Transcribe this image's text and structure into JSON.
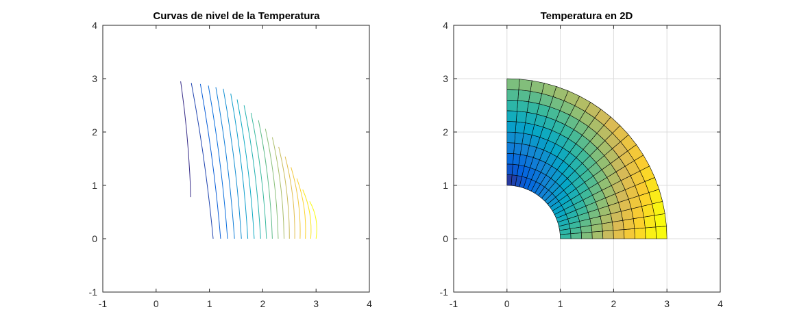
{
  "chart_data": [
    {
      "type": "contour",
      "title": "Curvas de nivel de la Temperatura",
      "xlabel": "",
      "ylabel": "",
      "xlim": [
        -1,
        4
      ],
      "ylim": [
        -1,
        4
      ],
      "xticks": [
        -1,
        0,
        1,
        2,
        3,
        4
      ],
      "yticks": [
        -1,
        0,
        1,
        2,
        3,
        4
      ],
      "grid": false,
      "domain": {
        "r_inner": 1,
        "r_outer": 3,
        "theta_range_deg": [
          0,
          90
        ]
      },
      "level_count": 19,
      "colormap": "parula",
      "colormap_colors": [
        "#352a87",
        "#0363e1",
        "#1485d4",
        "#06a7c6",
        "#38b99e",
        "#92bf73",
        "#d9ba56",
        "#fcce2e",
        "#f9fb0e"
      ],
      "levels": [
        {
          "bottom": [
            0.65,
            0.78
          ],
          "top": [
            0.46,
            2.95
          ]
        },
        {
          "bottom": [
            1.07,
            0.0
          ],
          "top": [
            0.66,
            2.92
          ]
        },
        {
          "bottom": [
            1.21,
            0.0
          ],
          "top": [
            0.83,
            2.9
          ]
        },
        {
          "bottom": [
            1.34,
            0.0
          ],
          "top": [
            0.98,
            2.87
          ]
        },
        {
          "bottom": [
            1.47,
            0.0
          ],
          "top": [
            1.12,
            2.84
          ]
        },
        {
          "bottom": [
            1.6,
            0.0
          ],
          "top": [
            1.26,
            2.81
          ]
        },
        {
          "bottom": [
            1.72,
            0.0
          ],
          "top": [
            1.4,
            2.72
          ]
        },
        {
          "bottom": [
            1.84,
            0.0
          ],
          "top": [
            1.52,
            2.61
          ]
        },
        {
          "bottom": [
            1.96,
            0.0
          ],
          "top": [
            1.65,
            2.5
          ]
        },
        {
          "bottom": [
            2.07,
            0.0
          ],
          "top": [
            1.78,
            2.36
          ]
        },
        {
          "bottom": [
            2.18,
            0.0
          ],
          "top": [
            1.92,
            2.22
          ]
        },
        {
          "bottom": [
            2.29,
            0.0
          ],
          "top": [
            2.05,
            2.06
          ]
        },
        {
          "bottom": [
            2.4,
            0.0
          ],
          "top": [
            2.18,
            1.9
          ]
        },
        {
          "bottom": [
            2.5,
            0.0
          ],
          "top": [
            2.3,
            1.72
          ]
        },
        {
          "bottom": [
            2.6,
            0.0
          ],
          "top": [
            2.42,
            1.54
          ]
        },
        {
          "bottom": [
            2.7,
            0.0
          ],
          "top": [
            2.53,
            1.34
          ]
        },
        {
          "bottom": [
            2.8,
            0.0
          ],
          "top": [
            2.64,
            1.13
          ]
        },
        {
          "bottom": [
            2.9,
            0.0
          ],
          "top": [
            2.75,
            0.92
          ]
        },
        {
          "bottom": [
            3.0,
            0.0
          ],
          "top": [
            2.88,
            0.7
          ]
        }
      ]
    },
    {
      "type": "surface",
      "title": "Temperatura en 2D",
      "xlabel": "",
      "ylabel": "",
      "xlim": [
        -1,
        4
      ],
      "ylim": [
        -1,
        4
      ],
      "xticks": [
        -1,
        0,
        1,
        2,
        3,
        4
      ],
      "yticks": [
        -1,
        0,
        1,
        2,
        3,
        4
      ],
      "grid": true,
      "view": "2D",
      "domain": {
        "r_inner": 1,
        "r_outer": 3,
        "theta_range_deg": [
          0,
          90
        ]
      },
      "mesh": {
        "radial_divisions": 10,
        "angular_divisions": 20
      },
      "colormap": "parula",
      "colormap_colors": [
        "#352a87",
        "#0363e1",
        "#1485d4",
        "#06a7c6",
        "#38b99e",
        "#92bf73",
        "#d9ba56",
        "#fcce2e",
        "#f9fb0e"
      ],
      "color_range": {
        "min_at": [
          0,
          1
        ],
        "max_at": [
          2.88,
          0.75
        ]
      }
    }
  ]
}
